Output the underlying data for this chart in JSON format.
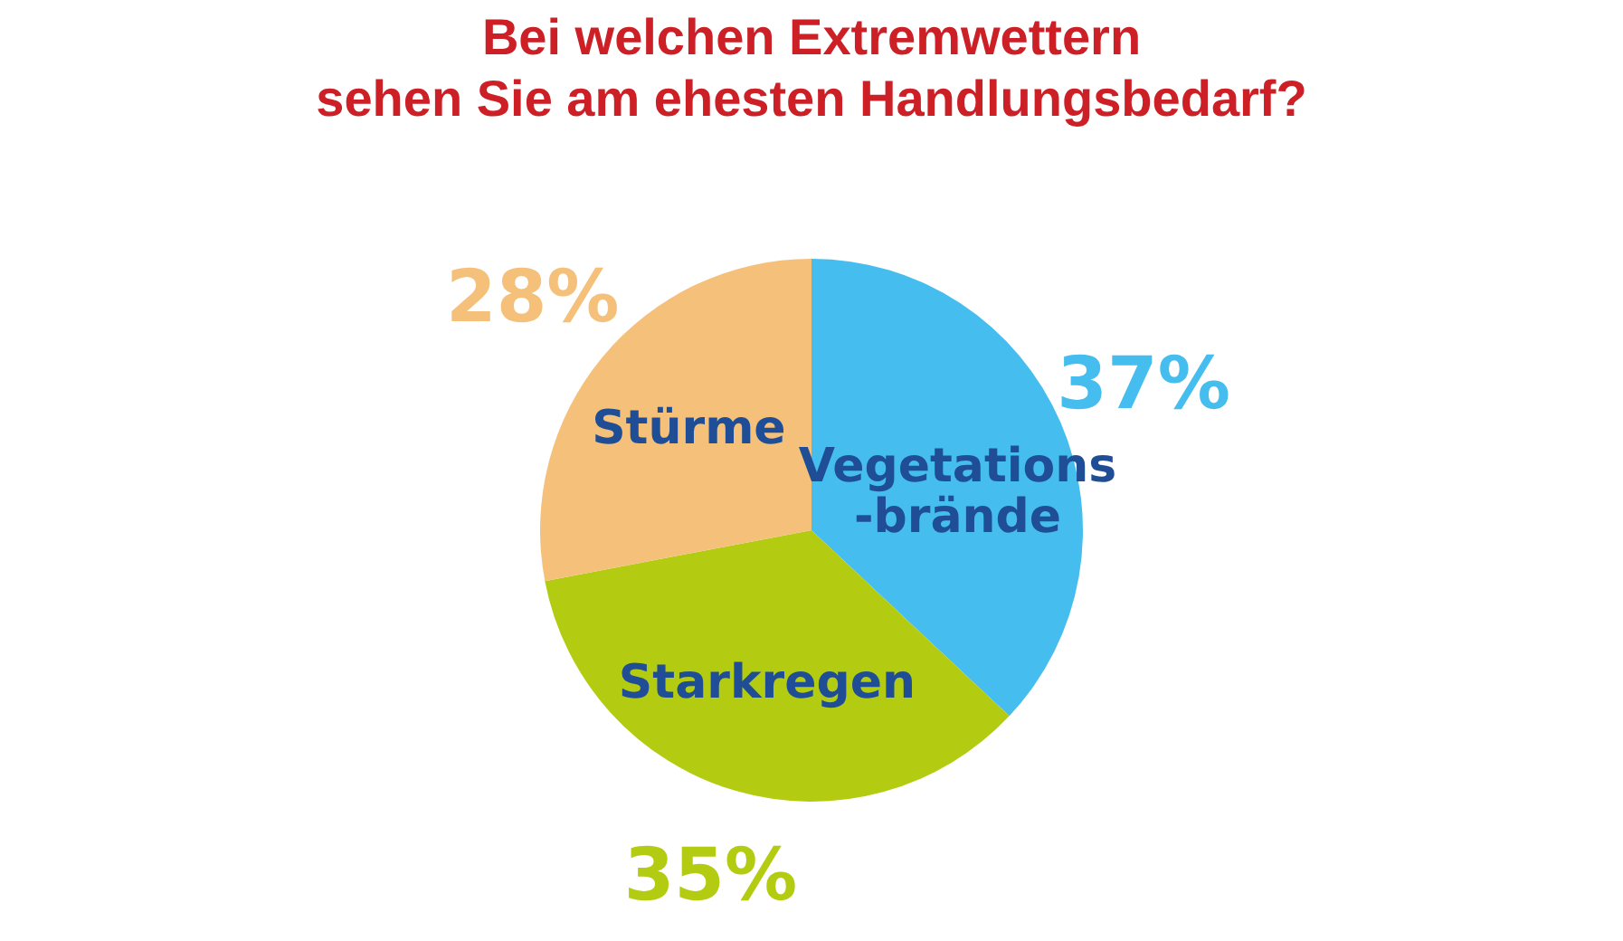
{
  "chart_data": {
    "type": "pie",
    "title": "Bei welchen Extremwettern\nsehen Sie am ehesten Handlungsbedarf?",
    "categories": [
      "Vegetations\n-brände",
      "Starkregen",
      "Stürme"
    ],
    "values": [
      37,
      35,
      28
    ],
    "value_labels": [
      "37%",
      "35%",
      "28%"
    ],
    "colors": [
      "#45bdee",
      "#b3cc12",
      "#f5c07a"
    ]
  }
}
